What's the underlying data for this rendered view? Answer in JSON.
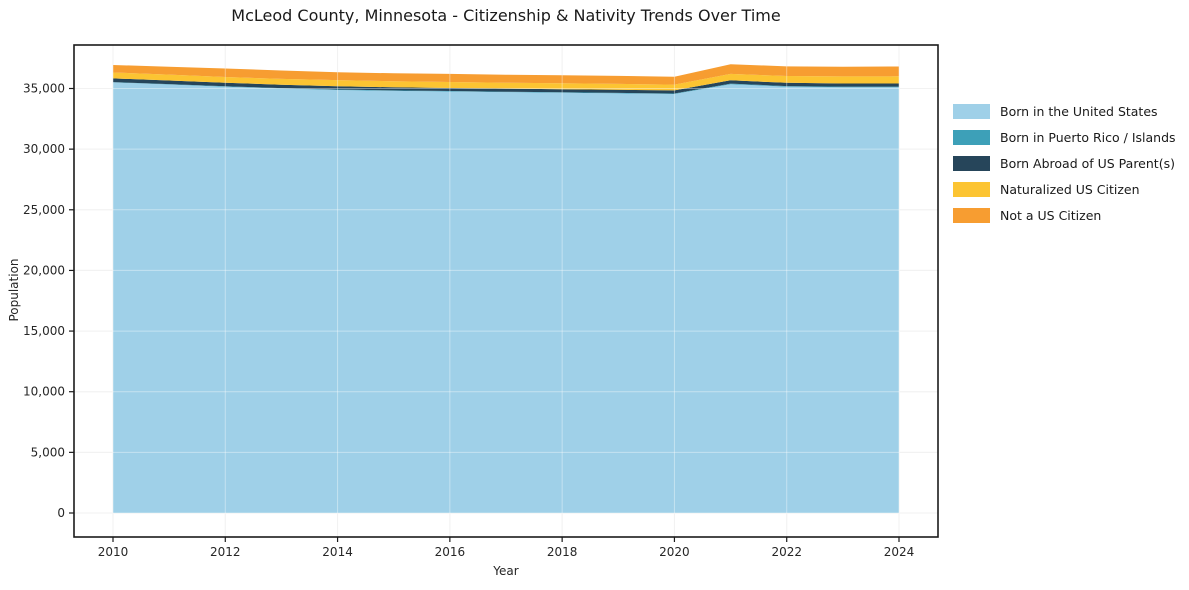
{
  "page": {
    "background": "#ffffff"
  },
  "axis": {
    "tick_color": "#262626",
    "spine_color": "#1a1a1a",
    "grid_color": "#e9e9e9"
  },
  "chart_data": {
    "type": "area",
    "stacked": true,
    "title": "McLeod County, Minnesota - Citizenship & Nativity Trends Over Time",
    "xlabel": "Year",
    "ylabel": "Population",
    "x": [
      2010,
      2011,
      2012,
      2013,
      2014,
      2015,
      2016,
      2017,
      2018,
      2019,
      2020,
      2021,
      2022,
      2023,
      2024
    ],
    "series": [
      {
        "name": "Born in the United States",
        "color": "#9fd0e8",
        "values": [
          35500,
          35330,
          35150,
          35000,
          34880,
          34800,
          34750,
          34700,
          34650,
          34600,
          34550,
          35350,
          35150,
          35100,
          35100
        ]
      },
      {
        "name": "Born in Puerto Rico / Islands",
        "color": "#3da0b8",
        "values": [
          30,
          30,
          30,
          35,
          40,
          40,
          40,
          40,
          40,
          40,
          40,
          50,
          50,
          55,
          60
        ]
      },
      {
        "name": "Born Abroad of US Parent(s)",
        "color": "#26455a",
        "values": [
          300,
          300,
          290,
          280,
          270,
          260,
          250,
          250,
          250,
          250,
          250,
          280,
          270,
          260,
          250
        ]
      },
      {
        "name": "Naturalized US Citizen",
        "color": "#fcc432",
        "values": [
          490,
          485,
          480,
          475,
          500,
          490,
          500,
          490,
          495,
          490,
          480,
          520,
          560,
          580,
          600
        ]
      },
      {
        "name": "Not a US Citizen",
        "color": "#f79d31",
        "values": [
          620,
          650,
          700,
          690,
          650,
          660,
          660,
          660,
          665,
          660,
          650,
          800,
          790,
          800,
          800
        ]
      }
    ],
    "xticks": [
      2010,
      2012,
      2014,
      2016,
      2018,
      2020,
      2022,
      2024
    ],
    "yticks": [
      0,
      5000,
      10000,
      15000,
      20000,
      25000,
      30000,
      35000
    ],
    "ylim": [
      0,
      35000
    ],
    "grid": true,
    "legend_position": "right"
  }
}
